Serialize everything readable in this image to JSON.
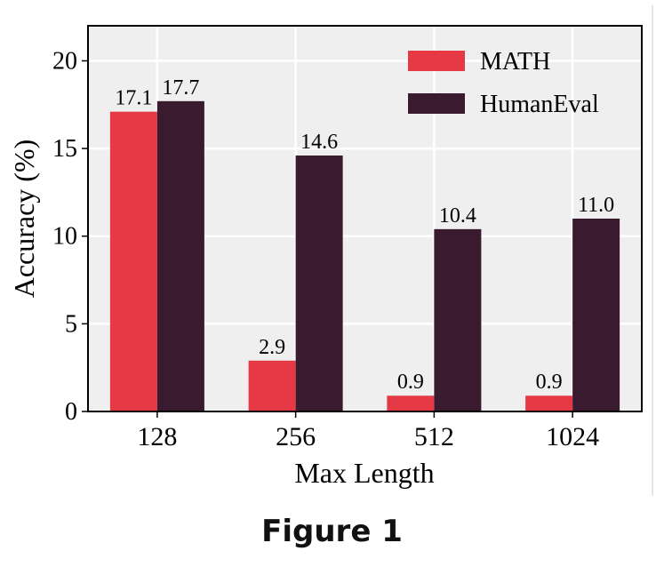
{
  "caption": "Figure 1",
  "chart_data": {
    "type": "bar",
    "title": "",
    "xlabel": "Max Length",
    "ylabel": "Accuracy (%)",
    "categories": [
      "128",
      "256",
      "512",
      "1024"
    ],
    "series": [
      {
        "name": "MATH",
        "values": [
          17.1,
          2.9,
          0.9,
          0.9
        ],
        "labels": [
          "17.1",
          "2.9",
          "0.9",
          "0.9"
        ],
        "color": "#e63946"
      },
      {
        "name": "HumanEval",
        "values": [
          17.7,
          14.6,
          10.4,
          11.0
        ],
        "labels": [
          "17.7",
          "14.6",
          "10.4",
          "11.0"
        ],
        "color": "#3a1a2e"
      }
    ],
    "ylim": [
      0,
      22
    ],
    "yticks": [
      0,
      5,
      10,
      15,
      20
    ],
    "grid": true,
    "legend": "top-right",
    "background": "#efefef"
  }
}
